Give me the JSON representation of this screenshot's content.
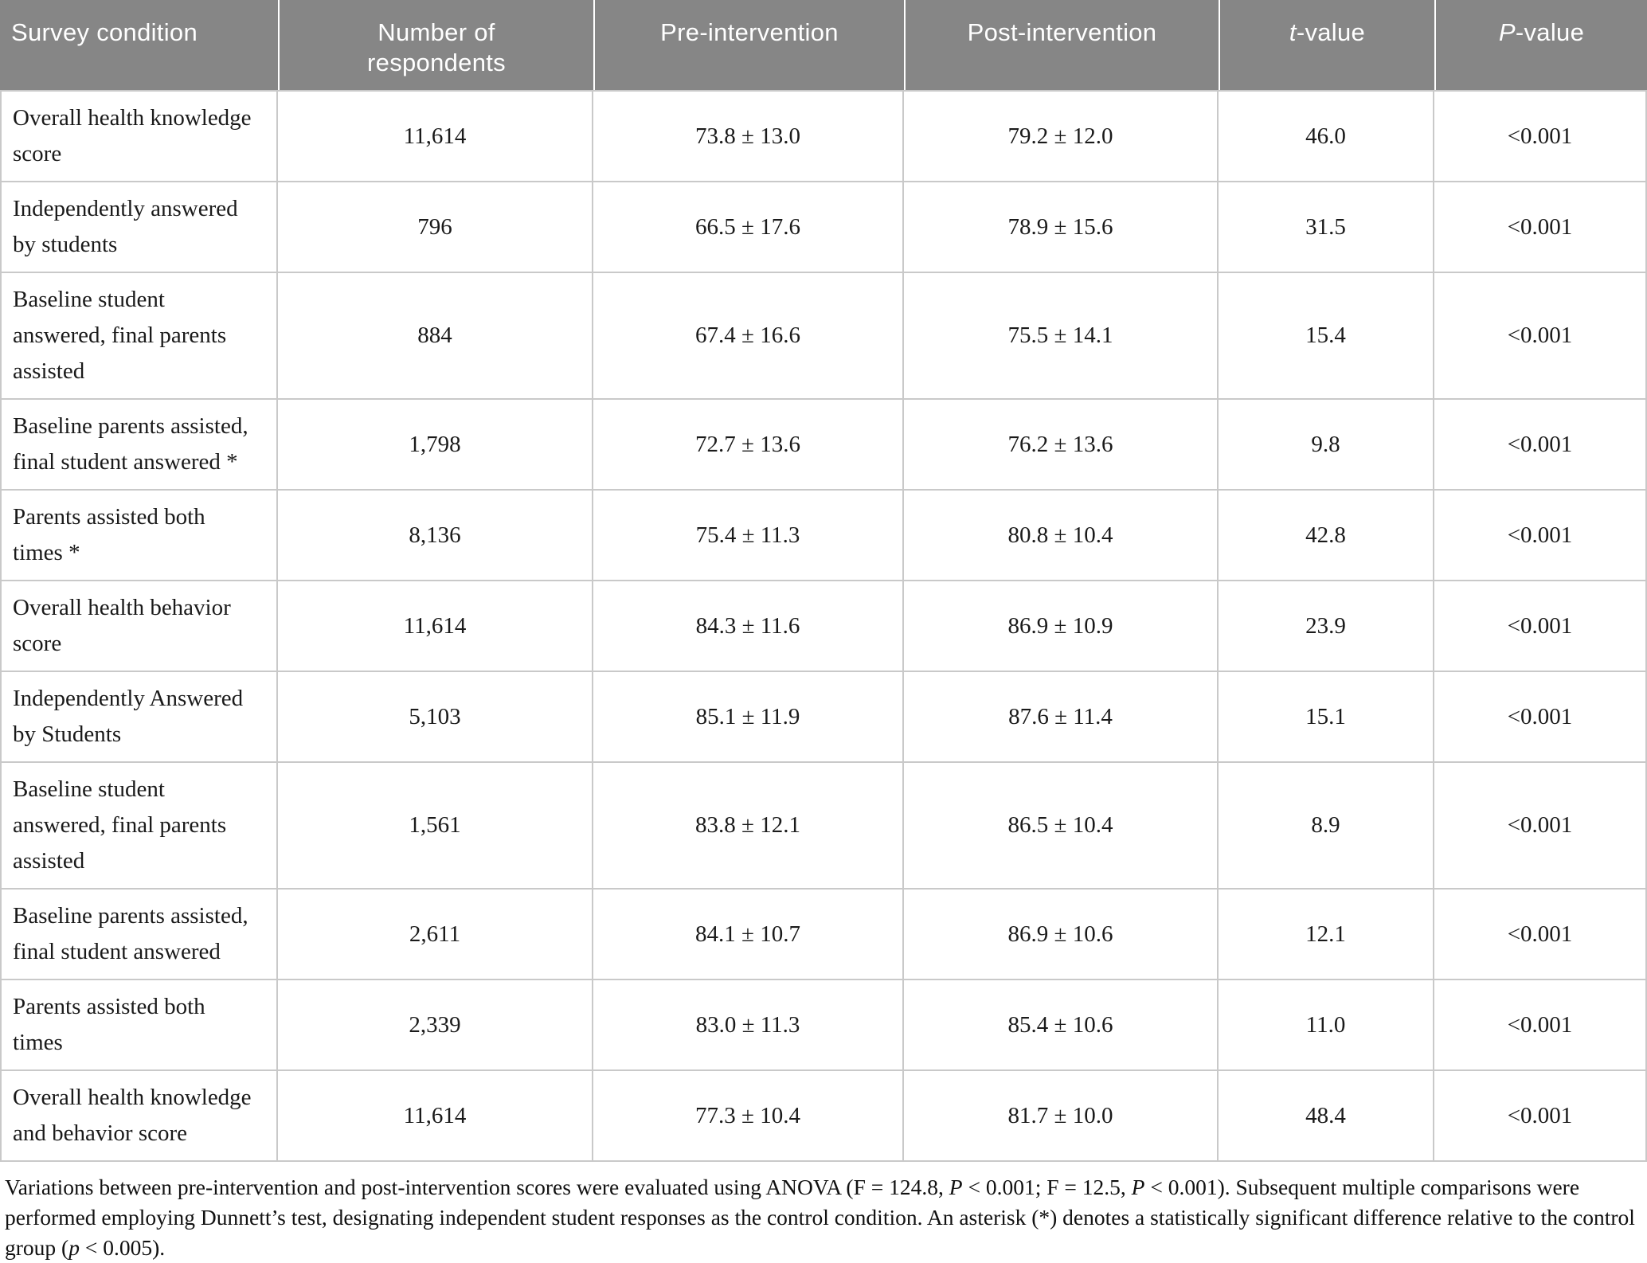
{
  "colors": {
    "header_background": "#868686",
    "header_text": "#ffffff",
    "header_separator": "#ffffff",
    "body_grid": "#c9c9c9",
    "body_text": "#1a1a1a"
  },
  "table": {
    "header": {
      "survey_condition": "Survey condition",
      "respondents": "Number of respondents",
      "pre": "Pre-intervention",
      "post": "Post-intervention",
      "t_italic": "t",
      "t_rest": "-value",
      "p_italic": "P",
      "p_rest": "-value"
    },
    "rows": [
      {
        "condition": "Overall health knowledge score",
        "n": "11,614",
        "pre": "73.8 ± 13.0",
        "post": "79.2 ± 12.0",
        "t": "46.0",
        "p": "<0.001"
      },
      {
        "condition": "Independently answered by students",
        "n": "796",
        "pre": "66.5 ± 17.6",
        "post": "78.9 ± 15.6",
        "t": "31.5",
        "p": "<0.001"
      },
      {
        "condition": "Baseline student answered, final parents assisted",
        "n": "884",
        "pre": "67.4 ± 16.6",
        "post": "75.5 ± 14.1",
        "t": "15.4",
        "p": "<0.001"
      },
      {
        "condition": "Baseline parents assisted, final student answered *",
        "n": "1,798",
        "pre": "72.7 ± 13.6",
        "post": "76.2 ± 13.6",
        "t": "9.8",
        "p": "<0.001"
      },
      {
        "condition": "Parents assisted both times *",
        "n": "8,136",
        "pre": "75.4 ± 11.3",
        "post": "80.8 ± 10.4",
        "t": "42.8",
        "p": "<0.001"
      },
      {
        "condition": "Overall health behavior score",
        "n": "11,614",
        "pre": "84.3 ± 11.6",
        "post": "86.9 ± 10.9",
        "t": "23.9",
        "p": "<0.001"
      },
      {
        "condition": "Independently Answered by Students",
        "n": "5,103",
        "pre": "85.1 ± 11.9",
        "post": "87.6 ± 11.4",
        "t": "15.1",
        "p": "<0.001"
      },
      {
        "condition": "Baseline student answered, final parents assisted",
        "n": "1,561",
        "pre": "83.8 ± 12.1",
        "post": "86.5 ± 10.4",
        "t": "8.9",
        "p": "<0.001"
      },
      {
        "condition": "Baseline parents assisted, final student answered",
        "n": "2,611",
        "pre": "84.1 ± 10.7",
        "post": "86.9 ± 10.6",
        "t": "12.1",
        "p": "<0.001"
      },
      {
        "condition": "Parents assisted both times",
        "n": "2,339",
        "pre": "83.0 ± 11.3",
        "post": "85.4 ± 10.6",
        "t": "11.0",
        "p": "<0.001"
      },
      {
        "condition": "Overall health knowledge and behavior score",
        "n": "11,614",
        "pre": "77.3 ± 10.4",
        "post": "81.7 ± 10.0",
        "t": "48.4",
        "p": "<0.001"
      }
    ]
  },
  "footnote": {
    "segments": [
      {
        "text": "Variations between pre-intervention and post-intervention scores were evaluated using ANOVA (F = 124.8, ",
        "italic": false
      },
      {
        "text": "P",
        "italic": true
      },
      {
        "text": " < 0.001; F = 12.5, ",
        "italic": false
      },
      {
        "text": "P",
        "italic": true
      },
      {
        "text": " < 0.001). Subsequent multiple comparisons were performed employing Dunnett’s test, designating independent student responses as the control condition. An asterisk (*) denotes a statistically significant difference relative to the control group (",
        "italic": false
      },
      {
        "text": "p",
        "italic": true
      },
      {
        "text": " < 0.005).",
        "italic": false
      }
    ]
  }
}
